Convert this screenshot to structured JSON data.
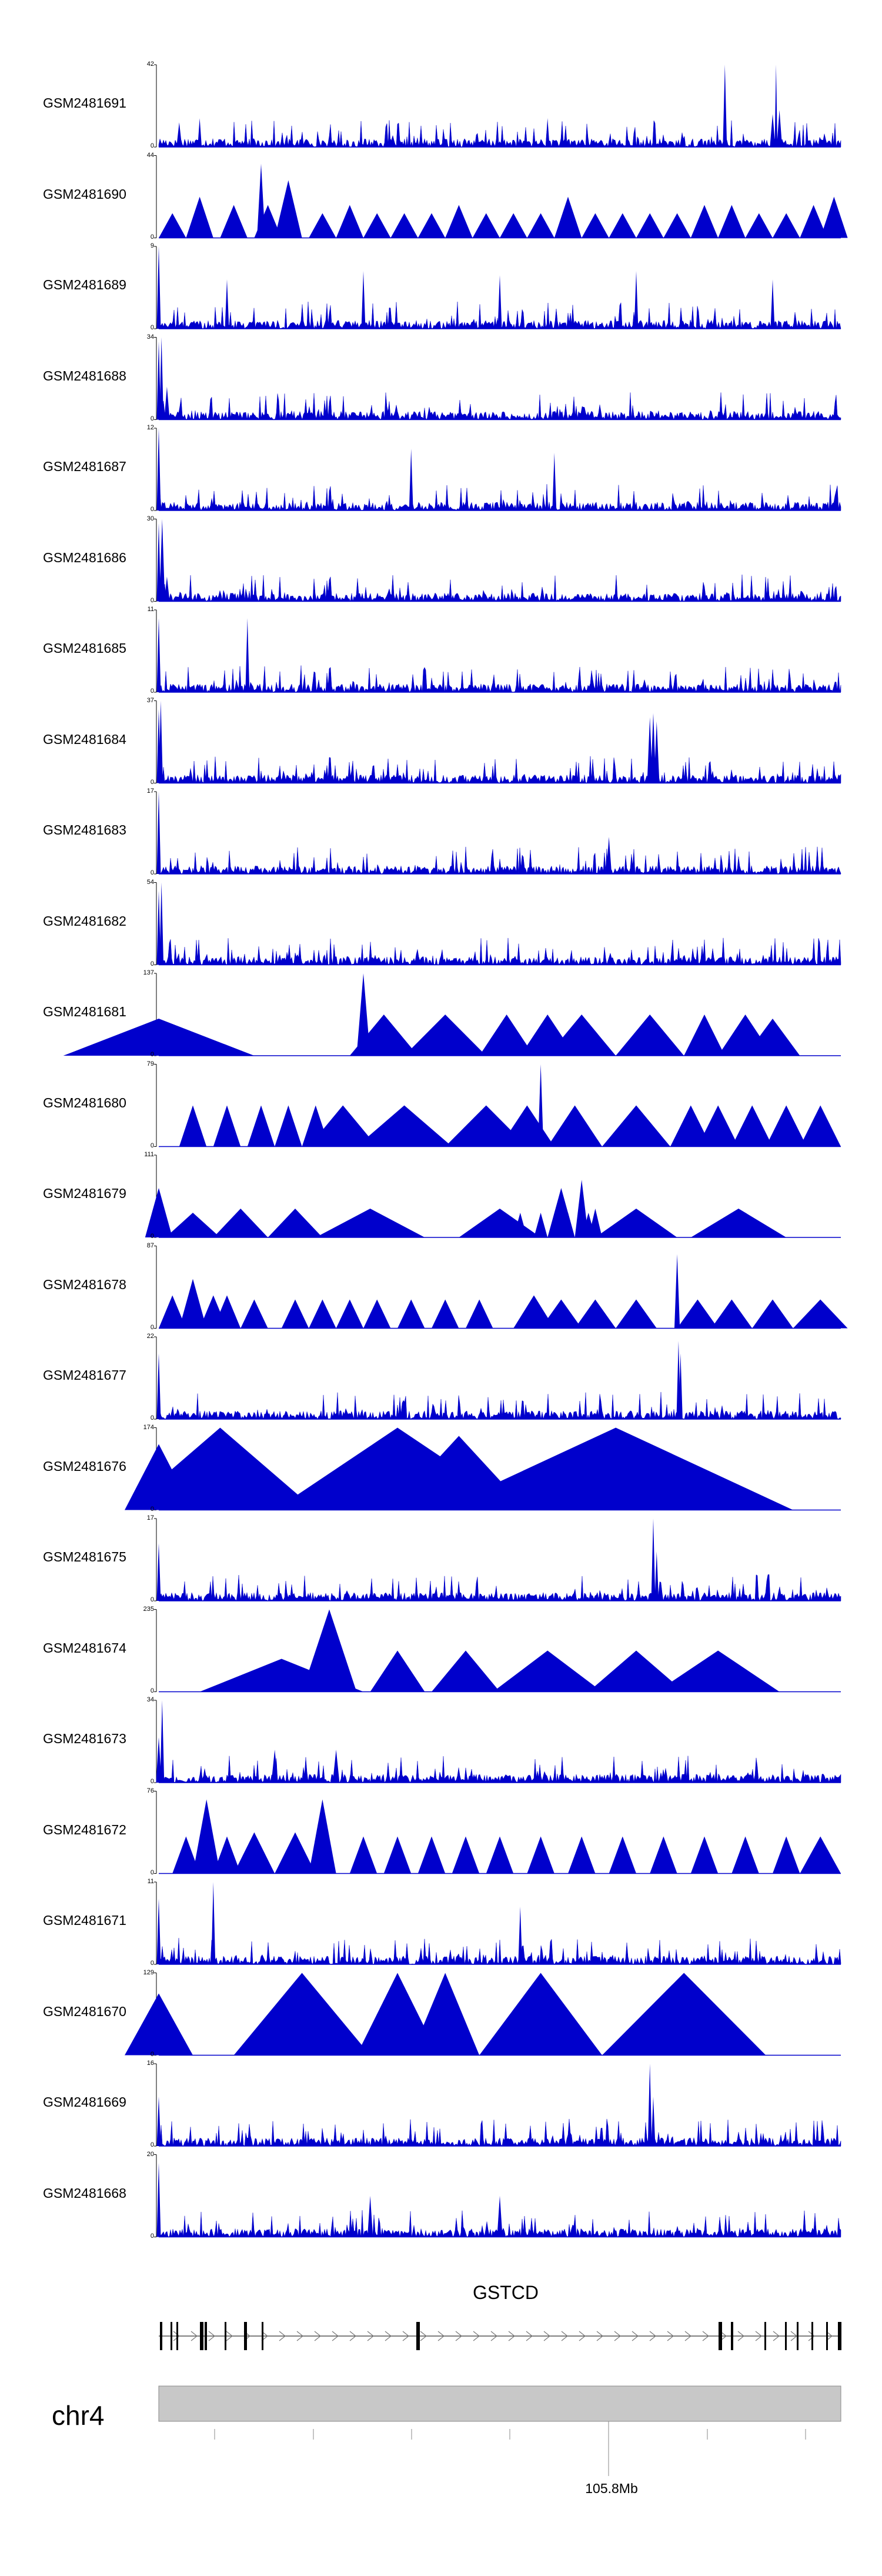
{
  "chart_data": {
    "type": "area",
    "title": "",
    "color": "#0000cc",
    "region": {
      "chromosome": "chr4",
      "gene": "GSTCD",
      "axis_tick_label": "105.8Mb"
    },
    "tracks": [
      {
        "name": "GSM2481691",
        "max": "42",
        "min": "0",
        "style": "signal",
        "x": [
          0.03,
          0.06,
          0.34,
          0.57,
          0.83,
          0.9,
          0.905,
          0.91
        ],
        "y": [
          0.3,
          0.35,
          0.1,
          0.35,
          1.0,
          0.4,
          1.0,
          0.45
        ],
        "w": [
          0.004,
          0.003,
          0.004,
          0.003,
          0.003,
          0.004,
          0.002,
          0.004
        ]
      },
      {
        "name": "GSM2481690",
        "max": "44",
        "min": "0",
        "style": "peaks",
        "x": [
          0.02,
          0.06,
          0.11,
          0.15,
          0.16,
          0.19,
          0.24,
          0.28,
          0.32,
          0.36,
          0.4,
          0.44,
          0.48,
          0.52,
          0.56,
          0.6,
          0.64,
          0.68,
          0.72,
          0.76,
          0.8,
          0.84,
          0.88,
          0.92,
          0.96,
          0.99
        ],
        "y": [
          0.3,
          0.5,
          0.4,
          0.9,
          0.4,
          0.7,
          0.3,
          0.4,
          0.3,
          0.3,
          0.3,
          0.4,
          0.3,
          0.3,
          0.3,
          0.5,
          0.3,
          0.3,
          0.3,
          0.3,
          0.4,
          0.4,
          0.3,
          0.3,
          0.4,
          0.5
        ],
        "w": [
          0.02,
          0.02,
          0.02,
          0.006,
          0.02,
          0.02,
          0.02,
          0.02,
          0.02,
          0.02,
          0.02,
          0.02,
          0.02,
          0.02,
          0.02,
          0.02,
          0.02,
          0.02,
          0.02,
          0.02,
          0.02,
          0.02,
          0.02,
          0.02,
          0.02,
          0.02
        ]
      },
      {
        "name": "GSM2481689",
        "max": "9",
        "min": "0",
        "style": "signal",
        "x": [
          0.0,
          0.1,
          0.3,
          0.5,
          0.7,
          0.9
        ],
        "y": [
          1.0,
          0.6,
          0.7,
          0.65,
          0.7,
          0.6
        ],
        "w": [
          0.003,
          0.003,
          0.003,
          0.003,
          0.003,
          0.003
        ]
      },
      {
        "name": "GSM2481688",
        "max": "34",
        "min": "0",
        "style": "signal",
        "x": [
          0.0,
          0.004,
          0.012
        ],
        "y": [
          0.95,
          1.0,
          0.4
        ],
        "w": [
          0.003,
          0.003,
          0.004
        ]
      },
      {
        "name": "GSM2481687",
        "max": "12",
        "min": "0",
        "style": "signal",
        "x": [
          0.0,
          0.37,
          0.58
        ],
        "y": [
          1.0,
          0.75,
          0.7
        ],
        "w": [
          0.003,
          0.003,
          0.003
        ]
      },
      {
        "name": "GSM2481686",
        "max": "30",
        "min": "0",
        "style": "signal",
        "x": [
          0.0,
          0.005,
          0.012
        ],
        "y": [
          0.95,
          1.0,
          0.3
        ],
        "w": [
          0.003,
          0.004,
          0.004
        ]
      },
      {
        "name": "GSM2481685",
        "max": "11",
        "min": "0",
        "style": "signal",
        "x": [
          0.0,
          0.13
        ],
        "y": [
          0.9,
          0.9
        ],
        "w": [
          0.003,
          0.003
        ]
      },
      {
        "name": "GSM2481684",
        "max": "37",
        "min": "0",
        "style": "signal",
        "x": [
          0.0,
          0.003,
          0.72,
          0.725,
          0.73
        ],
        "y": [
          0.9,
          1.0,
          0.8,
          0.85,
          0.75
        ],
        "w": [
          0.003,
          0.003,
          0.004,
          0.004,
          0.004
        ]
      },
      {
        "name": "GSM2481683",
        "max": "17",
        "min": "0",
        "style": "signal",
        "x": [
          0.0,
          0.66
        ],
        "y": [
          1.0,
          0.45
        ],
        "w": [
          0.003,
          0.004
        ]
      },
      {
        "name": "GSM2481682",
        "max": "54",
        "min": "0",
        "style": "signal",
        "x": [
          0.0,
          0.004
        ],
        "y": [
          0.9,
          1.0
        ],
        "w": [
          0.003,
          0.003
        ]
      },
      {
        "name": "GSM2481681",
        "max": "137",
        "min": "0",
        "style": "peaks",
        "x": [
          0.0,
          0.3,
          0.33,
          0.42,
          0.51,
          0.57,
          0.62,
          0.72,
          0.8,
          0.86,
          0.9
        ],
        "y": [
          0.45,
          1.0,
          0.5,
          0.5,
          0.5,
          0.5,
          0.5,
          0.5,
          0.5,
          0.5,
          0.45
        ],
        "w": [
          0.14,
          0.01,
          0.05,
          0.06,
          0.04,
          0.04,
          0.05,
          0.05,
          0.03,
          0.04,
          0.04
        ]
      },
      {
        "name": "GSM2481680",
        "max": "79",
        "min": "0",
        "style": "peaks",
        "x": [
          0.05,
          0.1,
          0.15,
          0.19,
          0.23,
          0.27,
          0.36,
          0.48,
          0.54,
          0.56,
          0.61,
          0.7,
          0.78,
          0.82,
          0.87,
          0.92,
          0.97
        ],
        "y": [
          0.5,
          0.5,
          0.5,
          0.5,
          0.5,
          0.5,
          0.5,
          0.5,
          0.5,
          1.0,
          0.5,
          0.5,
          0.5,
          0.5,
          0.5,
          0.5,
          0.5
        ],
        "w": [
          0.02,
          0.02,
          0.02,
          0.02,
          0.02,
          0.05,
          0.07,
          0.06,
          0.04,
          0.004,
          0.04,
          0.05,
          0.03,
          0.03,
          0.03,
          0.03,
          0.03
        ]
      },
      {
        "name": "GSM2481679",
        "max": "111",
        "min": "0",
        "style": "peaks",
        "x": [
          0.0,
          0.05,
          0.12,
          0.2,
          0.31,
          0.5,
          0.53,
          0.56,
          0.59,
          0.6,
          0.62,
          0.63,
          0.64,
          0.7,
          0.85
        ],
        "y": [
          0.6,
          0.3,
          0.35,
          0.35,
          0.35,
          0.35,
          0.3,
          0.3,
          0.6,
          0.3,
          0.7,
          0.3,
          0.35,
          0.35,
          0.35
        ],
        "w": [
          0.02,
          0.04,
          0.04,
          0.04,
          0.08,
          0.06,
          0.01,
          0.01,
          0.02,
          0.01,
          0.01,
          0.01,
          0.01,
          0.06,
          0.07
        ]
      },
      {
        "name": "GSM2481678",
        "max": "87",
        "min": "0",
        "style": "peaks",
        "x": [
          0.02,
          0.05,
          0.08,
          0.1,
          0.14,
          0.2,
          0.24,
          0.28,
          0.32,
          0.37,
          0.42,
          0.47,
          0.55,
          0.59,
          0.64,
          0.7,
          0.76,
          0.79,
          0.84,
          0.9,
          0.97
        ],
        "y": [
          0.4,
          0.6,
          0.4,
          0.4,
          0.35,
          0.35,
          0.35,
          0.35,
          0.35,
          0.35,
          0.35,
          0.35,
          0.4,
          0.35,
          0.35,
          0.35,
          0.9,
          0.35,
          0.35,
          0.35,
          0.35
        ],
        "w": [
          0.02,
          0.02,
          0.02,
          0.02,
          0.02,
          0.02,
          0.02,
          0.02,
          0.02,
          0.02,
          0.02,
          0.02,
          0.03,
          0.03,
          0.03,
          0.03,
          0.004,
          0.03,
          0.03,
          0.03,
          0.04
        ]
      },
      {
        "name": "GSM2481677",
        "max": "22",
        "min": "0",
        "style": "signal",
        "x": [
          0.0,
          0.762,
          0.765
        ],
        "y": [
          0.8,
          0.95,
          0.8
        ],
        "w": [
          0.003,
          0.003,
          0.003
        ]
      },
      {
        "name": "GSM2481676",
        "max": "174",
        "min": "0",
        "style": "peaks",
        "x": [
          0.0,
          0.09,
          0.35,
          0.44,
          0.67
        ],
        "y": [
          0.8,
          1.0,
          1.0,
          0.9,
          1.0
        ],
        "w": [
          0.05,
          0.14,
          0.18,
          0.1,
          0.26
        ]
      },
      {
        "name": "GSM2481675",
        "max": "17",
        "min": "0",
        "style": "signal",
        "x": [
          0.0,
          0.725,
          0.73
        ],
        "y": [
          0.7,
          1.0,
          0.6
        ],
        "w": [
          0.003,
          0.003,
          0.003
        ]
      },
      {
        "name": "GSM2481674",
        "max": "235",
        "min": "0",
        "style": "peaks",
        "x": [
          0.18,
          0.25,
          0.35,
          0.45,
          0.57,
          0.7,
          0.82
        ],
        "y": [
          0.4,
          1.0,
          0.5,
          0.5,
          0.5,
          0.5,
          0.5
        ],
        "w": [
          0.12,
          0.04,
          0.04,
          0.05,
          0.08,
          0.07,
          0.09
        ]
      },
      {
        "name": "GSM2481673",
        "max": "34",
        "min": "0",
        "style": "signal",
        "x": [
          0.0,
          0.005,
          0.17,
          0.26
        ],
        "y": [
          0.55,
          1.0,
          0.4,
          0.4
        ],
        "w": [
          0.004,
          0.003,
          0.005,
          0.005
        ]
      },
      {
        "name": "GSM2481672",
        "max": "76",
        "min": "0",
        "style": "peaks",
        "x": [
          0.04,
          0.07,
          0.1,
          0.14,
          0.2,
          0.24,
          0.3,
          0.35,
          0.4,
          0.45,
          0.5,
          0.56,
          0.62,
          0.68,
          0.74,
          0.8,
          0.86,
          0.92,
          0.97
        ],
        "y": [
          0.45,
          0.9,
          0.45,
          0.5,
          0.5,
          0.9,
          0.45,
          0.45,
          0.45,
          0.45,
          0.45,
          0.45,
          0.45,
          0.45,
          0.45,
          0.45,
          0.45,
          0.45,
          0.45
        ],
        "w": [
          0.02,
          0.02,
          0.02,
          0.03,
          0.03,
          0.02,
          0.02,
          0.02,
          0.02,
          0.02,
          0.02,
          0.02,
          0.02,
          0.02,
          0.02,
          0.02,
          0.02,
          0.02,
          0.03
        ]
      },
      {
        "name": "GSM2481671",
        "max": "11",
        "min": "0",
        "style": "signal",
        "x": [
          0.0,
          0.08,
          0.53
        ],
        "y": [
          0.8,
          1.0,
          0.7
        ],
        "w": [
          0.003,
          0.003,
          0.003
        ]
      },
      {
        "name": "GSM2481670",
        "max": "129",
        "min": "0",
        "style": "peaks",
        "x": [
          0.0,
          0.21,
          0.35,
          0.42,
          0.56,
          0.77
        ],
        "y": [
          0.75,
          1.0,
          1.0,
          1.0,
          1.0,
          1.0
        ],
        "w": [
          0.05,
          0.1,
          0.06,
          0.05,
          0.09,
          0.12
        ]
      },
      {
        "name": "GSM2481669",
        "max": "16",
        "min": "0",
        "style": "signal",
        "x": [
          0.0,
          0.72,
          0.725
        ],
        "y": [
          0.6,
          1.0,
          0.6
        ],
        "w": [
          0.003,
          0.003,
          0.003
        ]
      },
      {
        "name": "GSM2481668",
        "max": "20",
        "min": "0",
        "style": "signal",
        "x": [
          0.0,
          0.31,
          0.5
        ],
        "y": [
          0.9,
          0.5,
          0.5
        ],
        "w": [
          0.003,
          0.004,
          0.004
        ]
      }
    ]
  }
}
